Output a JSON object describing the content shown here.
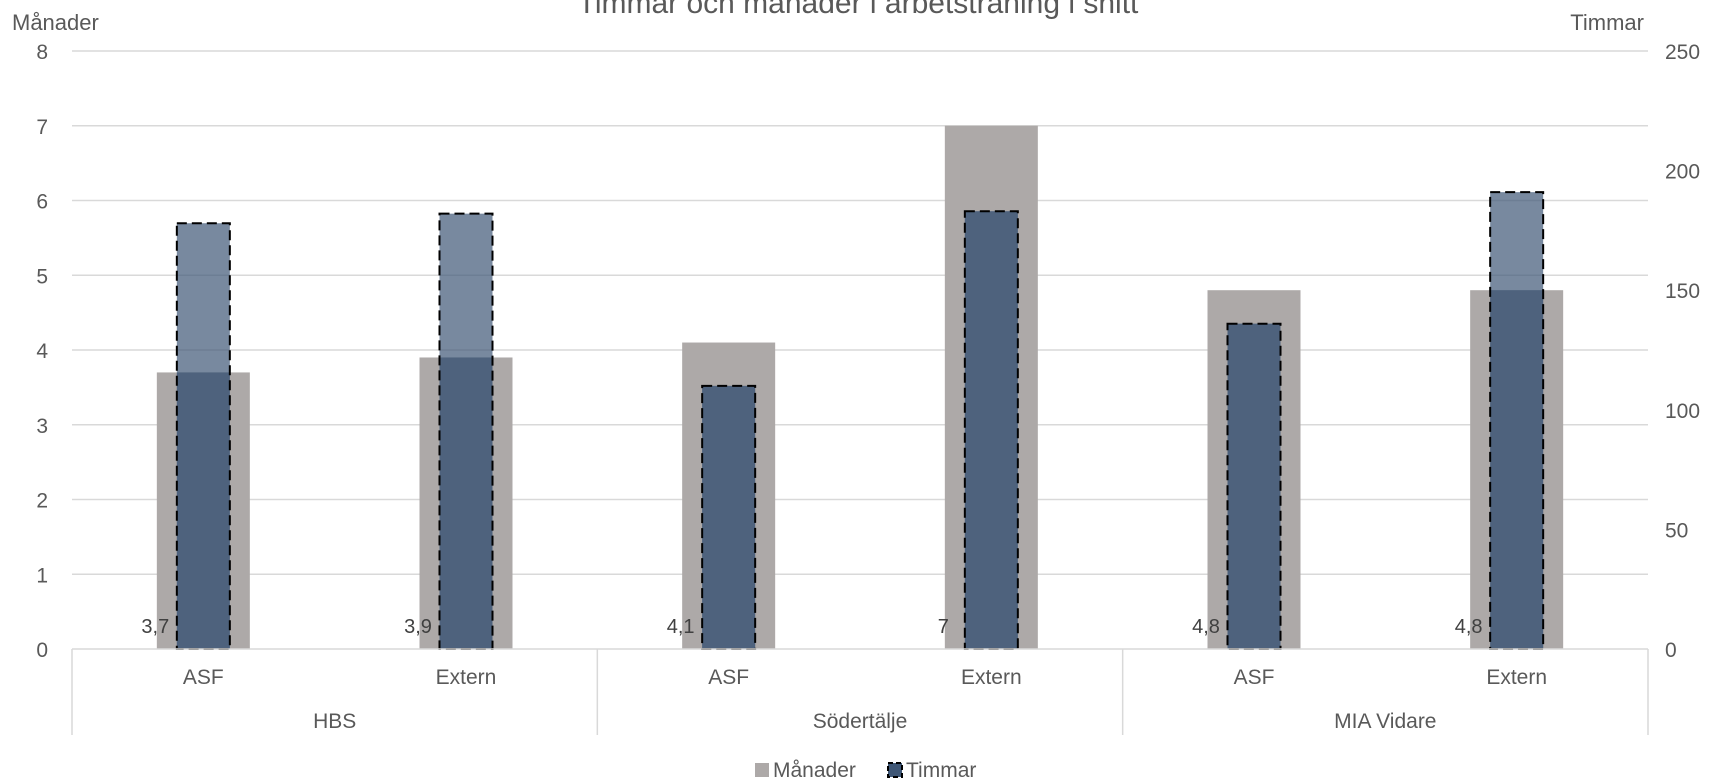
{
  "chart_data": {
    "type": "bar",
    "title": "Timmar och månader i arbetsträning i snitt",
    "y_left_label": "Månader",
    "y_right_label": "Timmar",
    "y_left_lim": [
      0,
      8
    ],
    "y_left_ticks": [
      "0",
      "1",
      "2",
      "3",
      "4",
      "5",
      "6",
      "7",
      "8"
    ],
    "y_right_lim": [
      0,
      250
    ],
    "y_right_ticks": [
      "0",
      "50",
      "100",
      "150",
      "200",
      "250"
    ],
    "groups": [
      {
        "name": "HBS",
        "categories": [
          "ASF",
          "Extern"
        ]
      },
      {
        "name": "Södertälje",
        "categories": [
          "ASF",
          "Extern"
        ]
      },
      {
        "name": "MIA Vidare",
        "categories": [
          "ASF",
          "Extern"
        ]
      }
    ],
    "series": [
      {
        "name": "Månader",
        "axis": "left",
        "color": "#ada9a8",
        "values": [
          3.7,
          3.9,
          4.1,
          7,
          4.8,
          4.8
        ],
        "labels": [
          "3,7",
          "3,9",
          "4,1",
          "7",
          "4,8",
          "4,8"
        ]
      },
      {
        "name": "Timmar",
        "axis": "right",
        "color": "#3f5776",
        "values": [
          178,
          182,
          110,
          183,
          136,
          191
        ]
      }
    ],
    "grid": true,
    "legend_position": "bottom"
  }
}
